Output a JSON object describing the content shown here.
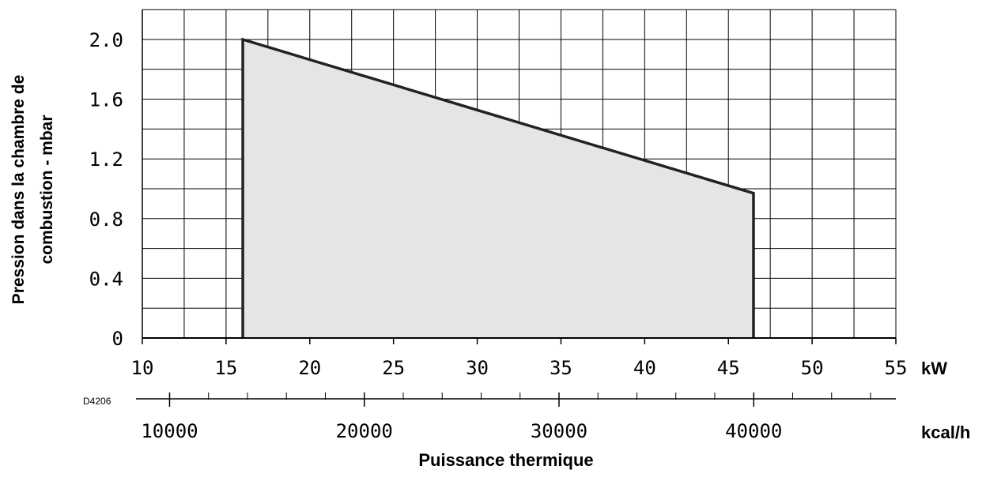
{
  "chart_data": {
    "type": "area",
    "title": "",
    "xlabel": "Puissance thermique",
    "ylabel_lines": [
      "Pression dans la chambre de",
      "combustion - mbar"
    ],
    "x_unit": "kW",
    "x2_unit": "kcal/h",
    "figure_code": "D4206",
    "xlim": [
      10,
      55
    ],
    "ylim": [
      0,
      2.0
    ],
    "x_ticks": [
      "10",
      "15",
      "20",
      "25",
      "30",
      "35",
      "40",
      "45",
      "50",
      "55"
    ],
    "y_ticks": [
      "0",
      "0.4",
      "0.8",
      "1.2",
      "1.6",
      "2.0"
    ],
    "x2_ticks": [
      "10000",
      "20000",
      "30000",
      "40000"
    ],
    "grid": true,
    "series": [
      {
        "x": [
          16,
          16,
          46.5,
          46.5
        ],
        "y": [
          0,
          2.0,
          0.97,
          0
        ]
      }
    ],
    "fill_color": "#e5e5e5",
    "line_color": "#222222"
  }
}
